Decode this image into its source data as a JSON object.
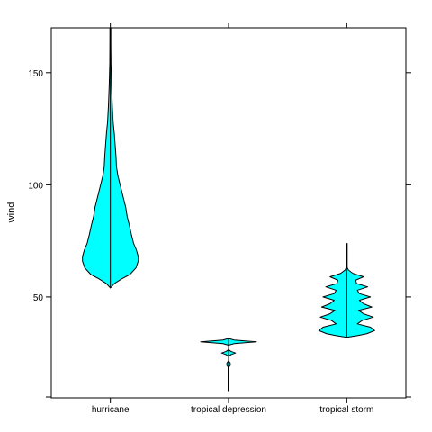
{
  "chart_data": {
    "type": "violin",
    "ylabel": "wind",
    "xlabel": "",
    "ylim": [
      5,
      170
    ],
    "yticks": [
      50,
      100,
      150
    ],
    "categories": [
      "hurricane",
      "tropical depression",
      "tropical storm"
    ],
    "colors": {
      "fill": "#00ffff",
      "stroke": "#000000",
      "frame": "#000000"
    },
    "violins": [
      {
        "category": "hurricane",
        "min": 54,
        "max": 170,
        "profile": [
          [
            54,
            0
          ],
          [
            56,
            0.15
          ],
          [
            58,
            0.4
          ],
          [
            60,
            0.7
          ],
          [
            63,
            0.92
          ],
          [
            66,
            1.0
          ],
          [
            68,
            1.0
          ],
          [
            71,
            0.93
          ],
          [
            74,
            0.83
          ],
          [
            78,
            0.75
          ],
          [
            82,
            0.68
          ],
          [
            86,
            0.6
          ],
          [
            90,
            0.55
          ],
          [
            95,
            0.45
          ],
          [
            100,
            0.35
          ],
          [
            104,
            0.27
          ],
          [
            108,
            0.22
          ],
          [
            113,
            0.2
          ],
          [
            118,
            0.17
          ],
          [
            123,
            0.14
          ],
          [
            128,
            0.1
          ],
          [
            135,
            0.07
          ],
          [
            145,
            0.04
          ],
          [
            155,
            0.02
          ],
          [
            162,
            0.01
          ],
          [
            170,
            0.0
          ]
        ],
        "whisker_range": [
          155,
          170
        ]
      },
      {
        "category": "tropical depression",
        "min": 8,
        "max": 32,
        "profile": [
          [
            18.5,
            0
          ],
          [
            19.5,
            0.06
          ],
          [
            20.5,
            0.06
          ],
          [
            21.5,
            0
          ],
          [
            23.5,
            0
          ],
          [
            24.3,
            0.09
          ],
          [
            25,
            0.25
          ],
          [
            25.7,
            0.09
          ],
          [
            26.5,
            0
          ],
          [
            28.5,
            0
          ],
          [
            29.2,
            0.2
          ],
          [
            30,
            1.0
          ],
          [
            30.8,
            0.2
          ],
          [
            31.5,
            0
          ]
        ],
        "whisker_range": [
          8,
          19
        ]
      },
      {
        "category": "tropical storm",
        "min": 32,
        "max": 74,
        "profile": [
          [
            32,
            0
          ],
          [
            32.8,
            0.4
          ],
          [
            33.6,
            0.72
          ],
          [
            35,
            1.0
          ],
          [
            36.5,
            0.85
          ],
          [
            38,
            0.38
          ],
          [
            39.5,
            0.55
          ],
          [
            41,
            0.95
          ],
          [
            42.5,
            0.6
          ],
          [
            44,
            0.42
          ],
          [
            45.5,
            0.9
          ],
          [
            47,
            0.6
          ],
          [
            48.5,
            0.45
          ],
          [
            50,
            0.85
          ],
          [
            51.5,
            0.45
          ],
          [
            53,
            0.38
          ],
          [
            54.5,
            0.75
          ],
          [
            56,
            0.35
          ],
          [
            57.5,
            0.32
          ],
          [
            59,
            0.6
          ],
          [
            60.5,
            0.22
          ],
          [
            62,
            0.06
          ],
          [
            63.5,
            0.0
          ]
        ],
        "whisker_range": [
          62,
          74
        ]
      }
    ]
  }
}
